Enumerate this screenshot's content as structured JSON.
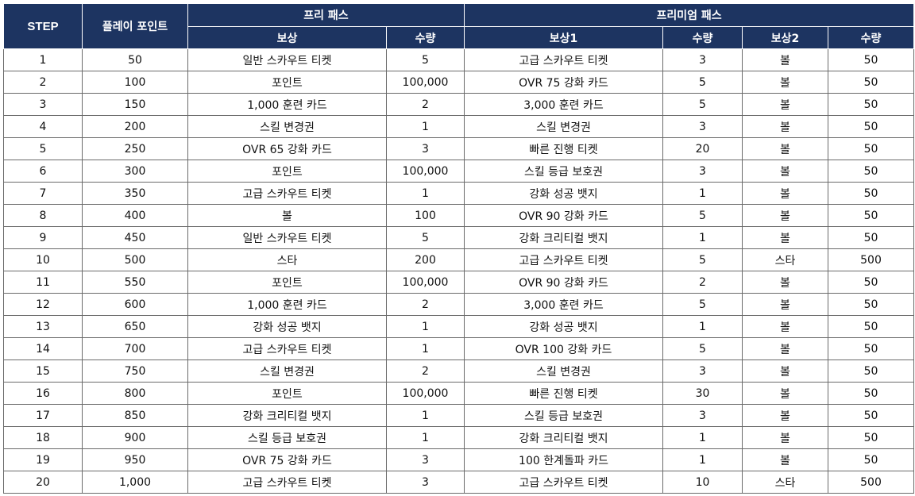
{
  "header": {
    "step": "STEP",
    "play_points": "플레이 포인트",
    "free_pass": "프리 패스",
    "premium_pass": "프리미엄 패스",
    "free_reward": "보상",
    "free_qty": "수량",
    "premium_reward1": "보상1",
    "premium_qty1": "수량",
    "premium_reward2": "보상2",
    "premium_qty2": "수량"
  },
  "rows": [
    [
      "1",
      "50",
      "일반 스카우트 티켓",
      "5",
      "고급 스카우트 티켓",
      "3",
      "볼",
      "50"
    ],
    [
      "2",
      "100",
      "포인트",
      "100,000",
      "OVR 75 강화 카드",
      "5",
      "볼",
      "50"
    ],
    [
      "3",
      "150",
      "1,000 훈련 카드",
      "2",
      "3,000 훈련 카드",
      "5",
      "볼",
      "50"
    ],
    [
      "4",
      "200",
      "스킬 변경권",
      "1",
      "스킬 변경권",
      "3",
      "볼",
      "50"
    ],
    [
      "5",
      "250",
      "OVR 65 강화 카드",
      "3",
      "빠른 진행 티켓",
      "20",
      "볼",
      "50"
    ],
    [
      "6",
      "300",
      "포인트",
      "100,000",
      "스킬 등급 보호권",
      "3",
      "볼",
      "50"
    ],
    [
      "7",
      "350",
      "고급 스카우트 티켓",
      "1",
      "강화 성공 뱃지",
      "1",
      "볼",
      "50"
    ],
    [
      "8",
      "400",
      "볼",
      "100",
      "OVR 90 강화 카드",
      "5",
      "볼",
      "50"
    ],
    [
      "9",
      "450",
      "일반 스카우트 티켓",
      "5",
      "강화 크리티컬 뱃지",
      "1",
      "볼",
      "50"
    ],
    [
      "10",
      "500",
      "스타",
      "200",
      "고급 스카우트 티켓",
      "5",
      "스타",
      "500"
    ],
    [
      "11",
      "550",
      "포인트",
      "100,000",
      "OVR 90 강화 카드",
      "2",
      "볼",
      "50"
    ],
    [
      "12",
      "600",
      "1,000 훈련 카드",
      "2",
      "3,000 훈련 카드",
      "5",
      "볼",
      "50"
    ],
    [
      "13",
      "650",
      "강화 성공 뱃지",
      "1",
      "강화 성공 뱃지",
      "1",
      "볼",
      "50"
    ],
    [
      "14",
      "700",
      "고급 스카우트 티켓",
      "1",
      "OVR 100 강화 카드",
      "5",
      "볼",
      "50"
    ],
    [
      "15",
      "750",
      "스킬 변경권",
      "2",
      "스킬 변경권",
      "3",
      "볼",
      "50"
    ],
    [
      "16",
      "800",
      "포인트",
      "100,000",
      "빠른 진행 티켓",
      "30",
      "볼",
      "50"
    ],
    [
      "17",
      "850",
      "강화 크리티컬 뱃지",
      "1",
      "스킬 등급 보호권",
      "3",
      "볼",
      "50"
    ],
    [
      "18",
      "900",
      "스킬 등급 보호권",
      "1",
      "강화 크리티컬 뱃지",
      "1",
      "볼",
      "50"
    ],
    [
      "19",
      "950",
      "OVR 75 강화 카드",
      "3",
      "100 한계돌파 카드",
      "1",
      "볼",
      "50"
    ],
    [
      "20",
      "1,000",
      "고급 스카우트 티켓",
      "3",
      "고급 스카우트 티켓",
      "10",
      "스타",
      "500"
    ]
  ]
}
